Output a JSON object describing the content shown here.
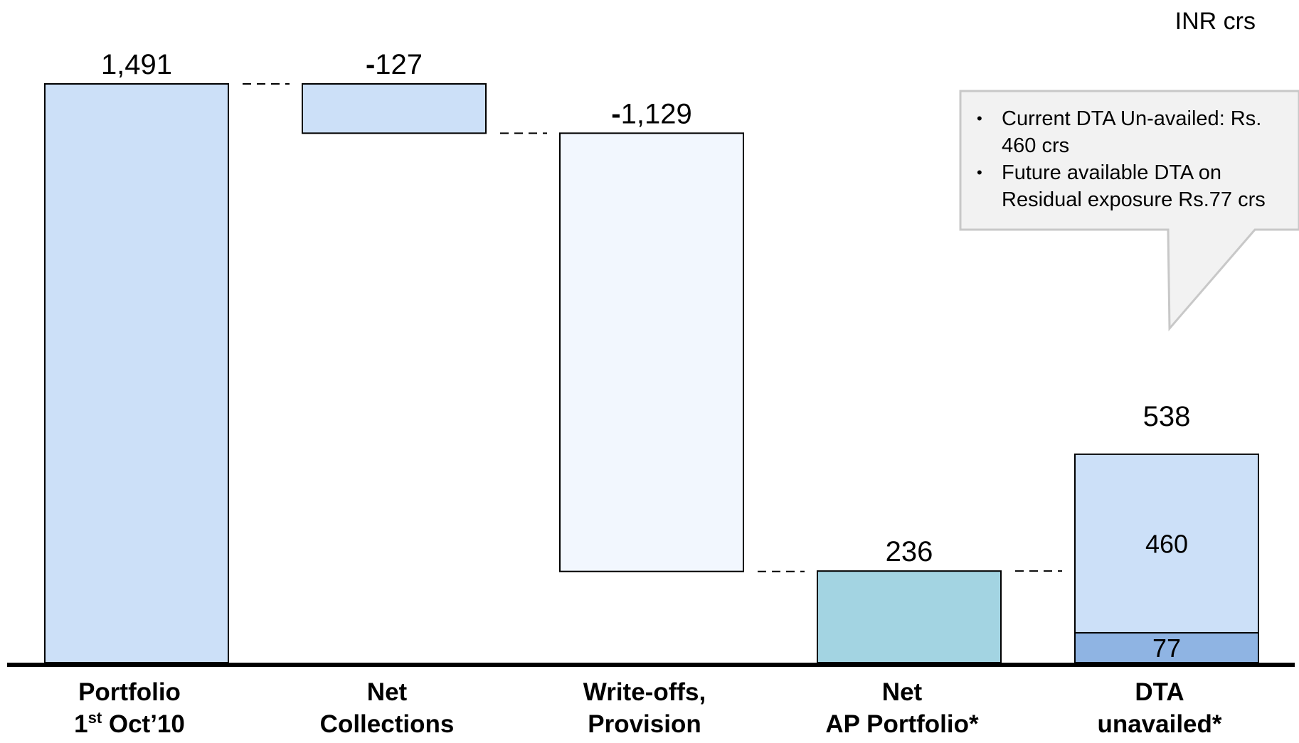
{
  "unit": "INR crs",
  "chart_data": {
    "type": "bar",
    "subtype": "waterfall",
    "categories": [
      [
        "Portfolio",
        "1st Oct’10"
      ],
      [
        "Net",
        "Collections"
      ],
      [
        "Write-offs,",
        "Provision"
      ],
      [
        "Net",
        "AP Portfolio*"
      ],
      [
        "DTA",
        "unavailed*"
      ]
    ],
    "bars": [
      {
        "label": "1,491",
        "start": 0,
        "end": 1491,
        "color": "#cce0f8"
      },
      {
        "label": "127",
        "sign": "-",
        "start": 1364,
        "end": 1491,
        "color": "#cce0f8"
      },
      {
        "label": "1,129",
        "sign": "-",
        "start": 235,
        "end": 1364,
        "color": "#f2f7fe"
      },
      {
        "label": "236",
        "start": 0,
        "end": 236,
        "color": "#a3d4e2"
      },
      {
        "label": "538",
        "segments": [
          {
            "label": "77",
            "value": 77,
            "color": "#8fb4e3"
          },
          {
            "label": "460",
            "value": 460,
            "color": "#cce0f8"
          }
        ]
      }
    ],
    "ylim": [
      0,
      1491
    ],
    "grid": false
  },
  "callout": {
    "bullets": [
      "Current DTA Un-availed: Rs. 460 crs",
      "Future available DTA on Residual exposure Rs.77 crs"
    ]
  }
}
